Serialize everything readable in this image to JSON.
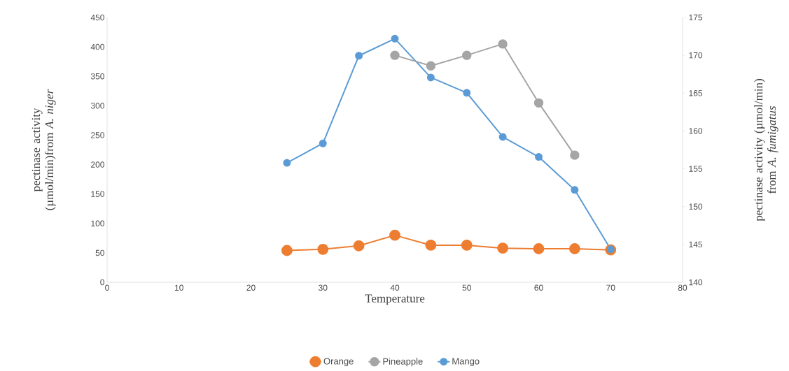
{
  "chart_data": {
    "type": "line",
    "xlabel": "Temperature",
    "ylabel": "pectinase activity (µmol/min)from *A. niger*",
    "y2label": "pectinase activity  (µmol/min) from *A. fumigatus*",
    "x": [
      25,
      30,
      35,
      40,
      45,
      50,
      55,
      60,
      65,
      70
    ],
    "series": [
      {
        "name": "Orange",
        "color": "#ed7d31",
        "values": [
          54,
          56,
          62,
          80,
          63,
          63,
          58,
          57,
          57,
          55
        ]
      },
      {
        "name": "Pineapple",
        "color": "#a5a5a5",
        "axis": "y2",
        "x": [
          40,
          45,
          50,
          55,
          60,
          65
        ],
        "values": [
          170,
          168.6,
          170,
          171.5,
          163.7,
          156.8
        ]
      },
      {
        "name": "Mango",
        "color": "#5b9bd5",
        "values": [
          203,
          236,
          385,
          414,
          348,
          322,
          247,
          213,
          157,
          56
        ]
      }
    ],
    "xlim": [
      0,
      80
    ],
    "xticks": [
      0,
      10,
      20,
      30,
      40,
      50,
      60,
      70,
      80
    ],
    "ylim": [
      0,
      450
    ],
    "yticks": [
      0,
      50,
      100,
      150,
      200,
      250,
      300,
      350,
      400,
      450
    ],
    "y2lim": [
      140,
      175
    ],
    "y2ticks": [
      140,
      145,
      150,
      155,
      160,
      165,
      170,
      175
    ],
    "grid": false,
    "legend": "bottom",
    "marker": "circle",
    "line_style": "solid"
  }
}
